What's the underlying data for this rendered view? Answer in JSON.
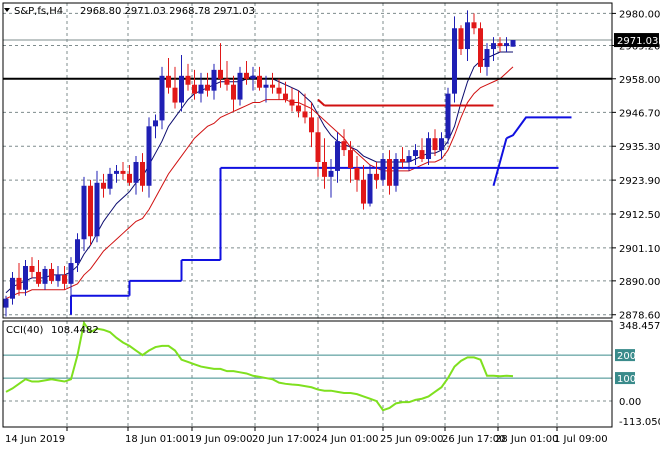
{
  "header": {
    "symbol_line": "S&P,fs,H4",
    "ohlc_line": "2968.80 2971.03 2968.78 2971.03"
  },
  "indicator": {
    "label": "CCI(40)",
    "value": "108.4482"
  },
  "colors": {
    "background": "#ffffff",
    "axis": "#000000",
    "grid": "#7f8c8d",
    "bull": "#1f1fb4",
    "bear": "#e01818",
    "fast_ma": "#0b0b6e",
    "slow_ma": "#d01010",
    "step_line": "#1010e0",
    "cci": "#7fe01f",
    "cci_levels": "#3a8b8b",
    "hline": "#000000",
    "price_tag_bg": "#000000",
    "price_tag_text": "#ffffff"
  },
  "chart_data": [
    {
      "type": "candlestick",
      "title": "",
      "x_tick_labels": [
        "14 Jun 2019",
        "18 Jun 01:00",
        "19 Jun 09:00",
        "20 Jun 17:00",
        "24 Jun 01:00",
        "25 Jun 09:00",
        "26 Jun 17:00",
        "28 Jun 01:00",
        "1 Jul 09:00"
      ],
      "y_tick_labels": [
        "2980.00",
        "2969.20",
        "2958.00",
        "2946.70",
        "2935.30",
        "2923.90",
        "2912.50",
        "2901.10",
        "2890.00",
        "2878.60"
      ],
      "y_ticks": [
        2980.0,
        2969.2,
        2958.0,
        2946.7,
        2935.3,
        2923.9,
        2912.5,
        2901.1,
        2890.0,
        2878.6
      ],
      "ylim": [
        2877.5,
        2983.5
      ],
      "current_price": "2971.03",
      "horizontal_level": 2958.0,
      "grid": true,
      "candles": [
        [
          2881,
          2885,
          2878,
          2884
        ],
        [
          2884,
          2893,
          2882,
          2891
        ],
        [
          2891,
          2896,
          2885,
          2887
        ],
        [
          2887,
          2897,
          2885,
          2895
        ],
        [
          2895,
          2898,
          2891,
          2893
        ],
        [
          2893,
          2897,
          2888,
          2889
        ],
        [
          2889,
          2895,
          2887,
          2894
        ],
        [
          2894,
          2896,
          2889,
          2890
        ],
        [
          2890,
          2895,
          2888,
          2892
        ],
        [
          2892,
          2895,
          2887,
          2889
        ],
        [
          2889,
          2898,
          2884,
          2896
        ],
        [
          2896,
          2906,
          2893,
          2904
        ],
        [
          2904,
          2925,
          2900,
          2922
        ],
        [
          2922,
          2924,
          2902,
          2905
        ],
        [
          2905,
          2927,
          2903,
          2923
        ],
        [
          2923,
          2926,
          2918,
          2921
        ],
        [
          2921,
          2928,
          2919,
          2926
        ],
        [
          2926,
          2929,
          2923,
          2927
        ],
        [
          2927,
          2930,
          2924,
          2926
        ],
        [
          2926,
          2929,
          2922,
          2923
        ],
        [
          2923,
          2932,
          2919,
          2930
        ],
        [
          2930,
          2933,
          2920,
          2922
        ],
        [
          2922,
          2945,
          2918,
          2942
        ],
        [
          2942,
          2946,
          2938,
          2944
        ],
        [
          2944,
          2962,
          2941,
          2959
        ],
        [
          2959,
          2965,
          2953,
          2955
        ],
        [
          2955,
          2962,
          2948,
          2950
        ],
        [
          2950,
          2966,
          2947,
          2959
        ],
        [
          2959,
          2963,
          2954,
          2956
        ],
        [
          2956,
          2961,
          2951,
          2953
        ],
        [
          2953,
          2960,
          2950,
          2956
        ],
        [
          2956,
          2960,
          2952,
          2954
        ],
        [
          2954,
          2963,
          2951,
          2961
        ],
        [
          2961,
          2970,
          2955,
          2958
        ],
        [
          2958,
          2964,
          2954,
          2956
        ],
        [
          2956,
          2959,
          2947,
          2951
        ],
        [
          2951,
          2962,
          2949,
          2960
        ],
        [
          2960,
          2964,
          2956,
          2958
        ],
        [
          2958,
          2962,
          2954,
          2959
        ],
        [
          2959,
          2962,
          2954,
          2955
        ],
        [
          2955,
          2959,
          2950,
          2956
        ],
        [
          2956,
          2960,
          2953,
          2955
        ],
        [
          2955,
          2958,
          2951,
          2953
        ],
        [
          2953,
          2957,
          2950,
          2951
        ],
        [
          2951,
          2955,
          2947,
          2949
        ],
        [
          2949,
          2954,
          2945,
          2947
        ],
        [
          2947,
          2953,
          2943,
          2945
        ],
        [
          2945,
          2950,
          2935,
          2940
        ],
        [
          2940,
          2945,
          2925,
          2930
        ],
        [
          2930,
          2938,
          2921,
          2925
        ],
        [
          2925,
          2931,
          2918,
          2927
        ],
        [
          2927,
          2940,
          2923,
          2937
        ],
        [
          2937,
          2941,
          2932,
          2934
        ],
        [
          2934,
          2937,
          2923,
          2928
        ],
        [
          2928,
          2932,
          2920,
          2924
        ],
        [
          2924,
          2929,
          2914,
          2916
        ],
        [
          2916,
          2929,
          2915,
          2926
        ],
        [
          2926,
          2930,
          2921,
          2924
        ],
        [
          2924,
          2933,
          2922,
          2931
        ],
        [
          2931,
          2934,
          2919,
          2922
        ],
        [
          2922,
          2933,
          2920,
          2931
        ],
        [
          2931,
          2935,
          2928,
          2930
        ],
        [
          2930,
          2934,
          2927,
          2932
        ],
        [
          2932,
          2936,
          2929,
          2934
        ],
        [
          2934,
          2938,
          2930,
          2931
        ],
        [
          2931,
          2940,
          2929,
          2938
        ],
        [
          2938,
          2941,
          2932,
          2934
        ],
        [
          2934,
          2940,
          2931,
          2938
        ],
        [
          2938,
          2955,
          2936,
          2953
        ],
        [
          2953,
          2979,
          2950,
          2975
        ],
        [
          2975,
          2976,
          2966,
          2968
        ],
        [
          2968,
          2981,
          2964,
          2977
        ],
        [
          2977,
          2980,
          2973,
          2975
        ],
        [
          2975,
          2977,
          2960,
          2962
        ],
        [
          2962,
          2970,
          2959,
          2968
        ],
        [
          2968,
          2972,
          2964,
          2970
        ],
        [
          2970,
          2972,
          2967,
          2969
        ],
        [
          2969,
          2972,
          2967,
          2970
        ],
        [
          2968.8,
          2971.03,
          2968.78,
          2971.03
        ]
      ],
      "fast_ma_values": [
        2886,
        2888,
        2889,
        2890,
        2891,
        2891,
        2891,
        2892,
        2892,
        2892,
        2893,
        2895,
        2899,
        2902,
        2906,
        2910,
        2913,
        2916,
        2918,
        2920,
        2923,
        2925,
        2929,
        2933,
        2937,
        2942,
        2945,
        2948,
        2951,
        2953,
        2954,
        2955,
        2956,
        2957,
        2957,
        2957,
        2957,
        2958,
        2959,
        2958,
        2958,
        2958,
        2957,
        2956,
        2955,
        2954,
        2952,
        2950,
        2946,
        2942,
        2939,
        2937,
        2936,
        2935,
        2934,
        2932,
        2931,
        2930,
        2930,
        2930,
        2930,
        2930,
        2930,
        2931,
        2932,
        2933,
        2933,
        2934,
        2937,
        2942,
        2950,
        2957,
        2962,
        2964,
        2965,
        2966,
        2967,
        2967,
        2967
      ],
      "slow_ma_values": [
        2884,
        2885,
        2886,
        2886,
        2887,
        2887,
        2887,
        2887,
        2887,
        2887,
        2888,
        2889,
        2892,
        2894,
        2897,
        2900,
        2902,
        2904,
        2906,
        2908,
        2910,
        2911,
        2914,
        2918,
        2922,
        2926,
        2929,
        2932,
        2935,
        2938,
        2940,
        2942,
        2943,
        2945,
        2946,
        2947,
        2948,
        2949,
        2950,
        2950,
        2951,
        2951,
        2951,
        2951,
        2950,
        2950,
        2949,
        2948,
        2946,
        2944,
        2942,
        2940,
        2938,
        2935,
        2933,
        2931,
        2929,
        2928,
        2927,
        2927,
        2927,
        2927,
        2927,
        2928,
        2929,
        2930,
        2930,
        2931,
        2934,
        2939,
        2945,
        2950,
        2953,
        2955,
        2956,
        2957,
        2958,
        2960,
        2962
      ],
      "step_line_segments": [
        {
          "from": 10,
          "to": 19,
          "value": 2885
        },
        {
          "from": 19,
          "to": 27,
          "value": 2890
        },
        {
          "from": 27,
          "to": 33,
          "value": 2897
        },
        {
          "from": 33,
          "to": 48,
          "value": 2928
        },
        {
          "from": 48,
          "to": 85,
          "value": 2928
        }
      ],
      "resistance_segment": {
        "from": 79,
        "to": 110,
        "value": 2949
      },
      "blue_segments": [
        {
          "points": [
            [
              110,
              2922
            ],
            [
              112,
              2938
            ]
          ]
        },
        {
          "points": [
            [
              112,
              2938
            ],
            [
              115,
              2939
            ],
            [
              118,
              2945
            ],
            [
              124,
              2945
            ]
          ]
        }
      ]
    },
    {
      "type": "line",
      "title": "",
      "y_tick_labels": [
        "348.4574",
        "200",
        "100",
        "0.00",
        "-113.0508"
      ],
      "y_ticks": [
        348.4574,
        200,
        100,
        0,
        -113.0508
      ],
      "ylim": [
        -113.0508,
        348.4574
      ],
      "levels": [
        200,
        100
      ],
      "grid": true,
      "series": [
        {
          "values": [
            40,
            55,
            75,
            95,
            85,
            85,
            90,
            95,
            90,
            85,
            95,
            200,
            340,
            300,
            315,
            310,
            300,
            275,
            255,
            240,
            220,
            200,
            220,
            235,
            240,
            240,
            220,
            180,
            170,
            160,
            150,
            145,
            140,
            140,
            130,
            130,
            125,
            120,
            110,
            105,
            100,
            95,
            80,
            75,
            72,
            70,
            65,
            60,
            50,
            45,
            45,
            40,
            35,
            35,
            30,
            20,
            10,
            0,
            -40,
            -30,
            -10,
            -5,
            -5,
            5,
            10,
            20,
            40,
            60,
            100,
            150,
            175,
            190,
            190,
            180,
            110,
            110,
            108,
            110,
            108.4482
          ]
        }
      ]
    }
  ]
}
